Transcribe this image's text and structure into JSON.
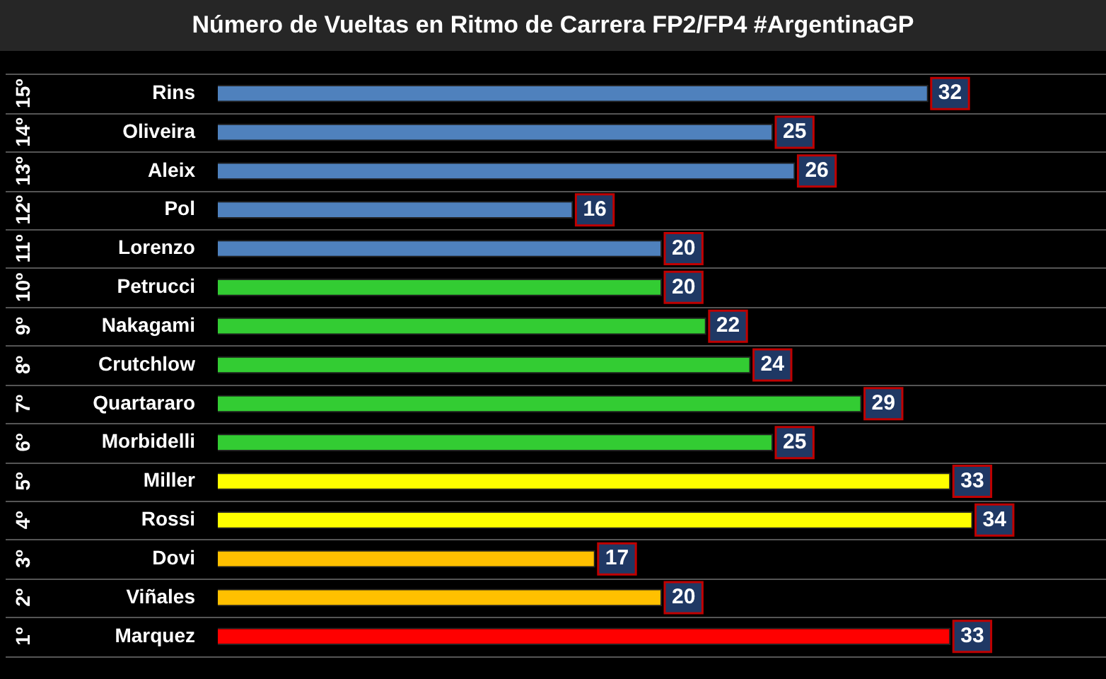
{
  "chart_data": {
    "type": "bar",
    "orientation": "horizontal",
    "title": "Número de Vueltas en Ritmo de Carrera FP2/FP4 #ArgentinaGP",
    "categories": [
      "Rins",
      "Oliveira",
      "Aleix",
      "Pol",
      "Lorenzo",
      "Petrucci",
      "Nakagami",
      "Crutchlow",
      "Quartararo",
      "Morbidelli",
      "Miller",
      "Rossi",
      "Dovi",
      "Viñales",
      "Marquez"
    ],
    "values": [
      32,
      25,
      26,
      16,
      20,
      20,
      22,
      24,
      29,
      25,
      33,
      34,
      17,
      20,
      33
    ],
    "colors": [
      "#4f81bd",
      "#4f81bd",
      "#4f81bd",
      "#4f81bd",
      "#4f81bd",
      "#33cc33",
      "#33cc33",
      "#33cc33",
      "#33cc33",
      "#33cc33",
      "#ffff00",
      "#ffff00",
      "#ffc000",
      "#ffc000",
      "#ff0000"
    ],
    "xlim": [
      0,
      40
    ],
    "data_labels": true,
    "grid": "y",
    "annotations": [
      "15º",
      "14º",
      "13º",
      "12º",
      "11º",
      "10º",
      "9º",
      "8º",
      "7º",
      "6º",
      "5º",
      "4º",
      "3º",
      "2º",
      "1º"
    ]
  }
}
